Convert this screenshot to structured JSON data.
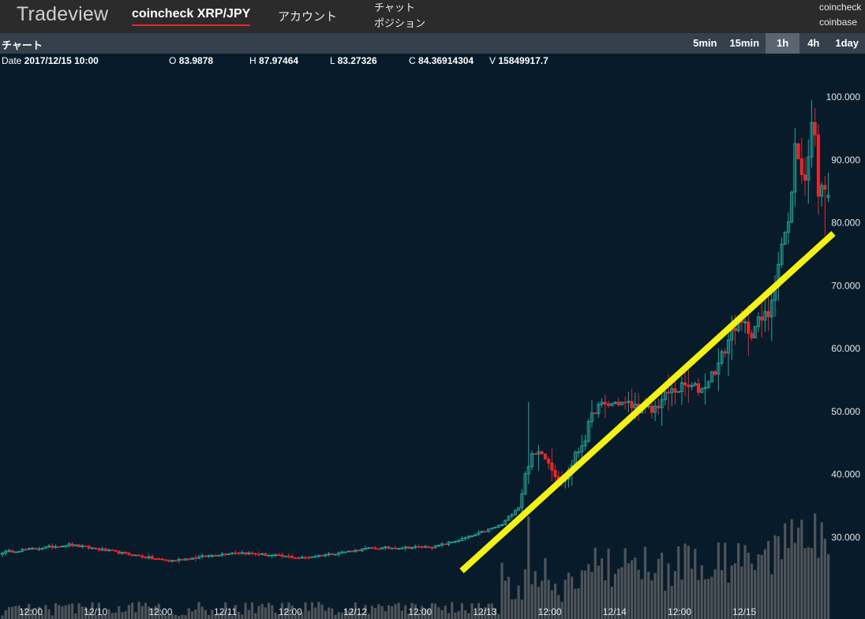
{
  "app": {
    "brand": "Tradeview",
    "pair_tab": "coincheck XRP/JPY",
    "account_tab": "アカウント",
    "menu": [
      "チャット",
      "ポジション"
    ],
    "exchanges": [
      "coincheck",
      "coinbase"
    ]
  },
  "chart_header": {
    "title": "チャート",
    "timeframes": [
      "5min",
      "15min",
      "1h",
      "4h",
      "1day"
    ],
    "active_timeframe": "1h"
  },
  "ohlc": {
    "date_label": "Date",
    "date_value": "2017/12/15 10:00",
    "o_label": "O",
    "o_value": "83.9878",
    "h_label": "H",
    "h_value": "87.97464",
    "l_label": "L",
    "l_value": "83.27326",
    "c_label": "C",
    "c_value": "84.36914304",
    "v_label": "V",
    "v_value": "15849917.7"
  },
  "colors": {
    "up": "#26a69a",
    "down": "#e8262a",
    "volume": "#4f5459",
    "trendline": "#f4f116",
    "background": "#081b2a"
  },
  "chart_data": {
    "type": "candlestick",
    "y_range": [
      22,
      103
    ],
    "y_ticks": [
      "100.000",
      "90.000",
      "80.000",
      "70.000",
      "60.000",
      "50.000",
      "40.000",
      "30.000"
    ],
    "y_tick_values": [
      100,
      90,
      80,
      70,
      60,
      50,
      40,
      30
    ],
    "x_ticks": [
      "12:00",
      "12/10",
      "12:00",
      "12/11",
      "12:00",
      "12/12",
      "12:00",
      "12/13",
      "12:00",
      "12/14",
      "12:00",
      "12/15"
    ],
    "first_bar": "2017/12/09 00:00",
    "bar_interval": "1h",
    "last_bar": "2017/12/15 10:00",
    "keypoints": [
      [
        0,
        27.6
      ],
      [
        20,
        28.8
      ],
      [
        30,
        28.0
      ],
      [
        50,
        26.2
      ],
      [
        70,
        27.6
      ],
      [
        90,
        26.7
      ],
      [
        110,
        28.2
      ],
      [
        130,
        28.5
      ],
      [
        140,
        30.0
      ],
      [
        150,
        32.0
      ],
      [
        155,
        35.0
      ],
      [
        158,
        42.0
      ],
      [
        162,
        44.0
      ],
      [
        168,
        38.5
      ],
      [
        175,
        46.0
      ],
      [
        178,
        50.5
      ],
      [
        185,
        51.5
      ],
      [
        195,
        50.0
      ],
      [
        200,
        53.0
      ],
      [
        205,
        54.0
      ],
      [
        210,
        53.5
      ],
      [
        215,
        57.5
      ],
      [
        220,
        64.0
      ],
      [
        225,
        63.0
      ],
      [
        230,
        65.5
      ],
      [
        232,
        71.0
      ],
      [
        234,
        76.5
      ],
      [
        236,
        79.5
      ],
      [
        238,
        92.0
      ],
      [
        240,
        88.5
      ],
      [
        241,
        87.0
      ],
      [
        242,
        90.0
      ],
      [
        243,
        97.0
      ],
      [
        244,
        93.0
      ],
      [
        245,
        85.0
      ],
      [
        246,
        87.0
      ],
      [
        247,
        86.0
      ],
      [
        248,
        84.4
      ]
    ],
    "trendline": {
      "start": [
        "12/12 ~14:00",
        25
      ],
      "end": [
        "12/15 ~13:00",
        79
      ]
    },
    "last_bar_ohlc": {
      "open": 83.9878,
      "high": 87.97464,
      "low": 83.27326,
      "close": 84.36914304,
      "volume": 15849917.7
    }
  }
}
